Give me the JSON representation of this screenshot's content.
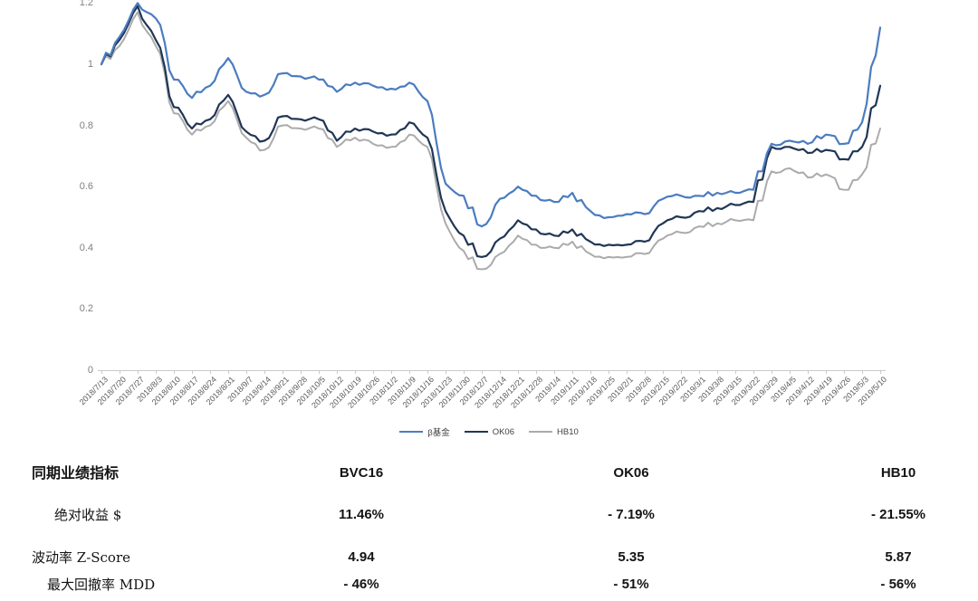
{
  "chart_data": {
    "type": "line",
    "title": "",
    "xlabel": "",
    "ylabel": "",
    "ylim": [
      0,
      1.2
    ],
    "y_ticks": [
      0,
      0.2,
      0.4,
      0.6,
      0.8,
      1,
      1.2
    ],
    "grid": false,
    "legend_position": "bottom",
    "x": [
      "2018/7/13",
      "2018/7/20",
      "2018/7/27",
      "2018/8/3",
      "2018/8/10",
      "2018/8/17",
      "2018/8/24",
      "2018/8/31",
      "2018/9/7",
      "2018/9/14",
      "2018/9/21",
      "2018/9/28",
      "2018/10/5",
      "2018/10/12",
      "2018/10/19",
      "2018/10/26",
      "2018/11/2",
      "2018/11/9",
      "2018/11/16",
      "2018/11/23",
      "2018/11/30",
      "2018/12/7",
      "2018/12/14",
      "2018/12/21",
      "2018/12/28",
      "2019/1/4",
      "2019/1/11",
      "2019/1/18",
      "2019/1/25",
      "2019/2/1",
      "2019/2/8",
      "2019/2/15",
      "2019/2/22",
      "2019/3/1",
      "2019/3/8",
      "2019/3/15",
      "2019/3/22",
      "2019/3/29",
      "2019/4/5",
      "2019/4/12",
      "2019/4/19",
      "2019/4/26",
      "2019/5/3",
      "2019/5/10"
    ],
    "series": [
      {
        "name": "β基金",
        "color": "#4B7CC0",
        "values": [
          1.0,
          1.09,
          1.2,
          1.15,
          0.95,
          0.89,
          0.93,
          1.02,
          0.91,
          0.9,
          0.97,
          0.96,
          0.95,
          0.91,
          0.94,
          0.93,
          0.92,
          0.94,
          0.88,
          0.61,
          0.57,
          0.47,
          0.56,
          0.6,
          0.57,
          0.55,
          0.58,
          0.52,
          0.5,
          0.51,
          0.51,
          0.56,
          0.57,
          0.57,
          0.58,
          0.58,
          0.59,
          0.74,
          0.75,
          0.74,
          0.77,
          0.74,
          0.81,
          1.12
        ]
      },
      {
        "name": "OK06",
        "color": "#203655",
        "values": [
          1.0,
          1.08,
          1.19,
          1.08,
          0.86,
          0.79,
          0.82,
          0.9,
          0.78,
          0.75,
          0.83,
          0.82,
          0.82,
          0.75,
          0.79,
          0.78,
          0.77,
          0.81,
          0.76,
          0.52,
          0.44,
          0.37,
          0.43,
          0.49,
          0.46,
          0.44,
          0.46,
          0.42,
          0.41,
          0.41,
          0.42,
          0.48,
          0.5,
          0.52,
          0.53,
          0.54,
          0.55,
          0.73,
          0.73,
          0.71,
          0.72,
          0.69,
          0.73,
          0.93
        ]
      },
      {
        "name": "HB10",
        "color": "#ABABAB",
        "values": [
          1.0,
          1.06,
          1.17,
          1.06,
          0.84,
          0.77,
          0.8,
          0.88,
          0.76,
          0.72,
          0.8,
          0.79,
          0.79,
          0.73,
          0.76,
          0.74,
          0.73,
          0.77,
          0.73,
          0.48,
          0.39,
          0.33,
          0.38,
          0.44,
          0.41,
          0.4,
          0.42,
          0.38,
          0.37,
          0.37,
          0.38,
          0.43,
          0.45,
          0.47,
          0.48,
          0.49,
          0.49,
          0.65,
          0.66,
          0.63,
          0.64,
          0.59,
          0.64,
          0.79
        ]
      }
    ]
  },
  "legend": {
    "items": [
      {
        "label": "β基金",
        "color": "#4B7CC0"
      },
      {
        "label": "OK06",
        "color": "#203655"
      },
      {
        "label": "HB10",
        "color": "#ABABAB"
      }
    ]
  },
  "table": {
    "header": {
      "label": "同期业绩指标",
      "columns": [
        "BVC16",
        "OK06",
        "HB10"
      ]
    },
    "rows": [
      {
        "label": "绝对收益 $",
        "values": [
          "11.46%",
          "- 7.19%",
          "- 21.55%"
        ],
        "partially_visible": false
      },
      {
        "label": "波动率 Z-Score",
        "values": [
          "4.94",
          "5.35",
          "5.87"
        ],
        "partially_visible": false
      },
      {
        "label": "最大回撤率 MDD",
        "values": [
          "- 46%",
          "- 51%",
          "- 56%"
        ],
        "partially_visible": true
      }
    ]
  },
  "colors": {
    "axis": "#c9c9c9",
    "axis_text": "#595959",
    "y_axis_text": "#7f7f7f",
    "table_text": "#141414"
  }
}
